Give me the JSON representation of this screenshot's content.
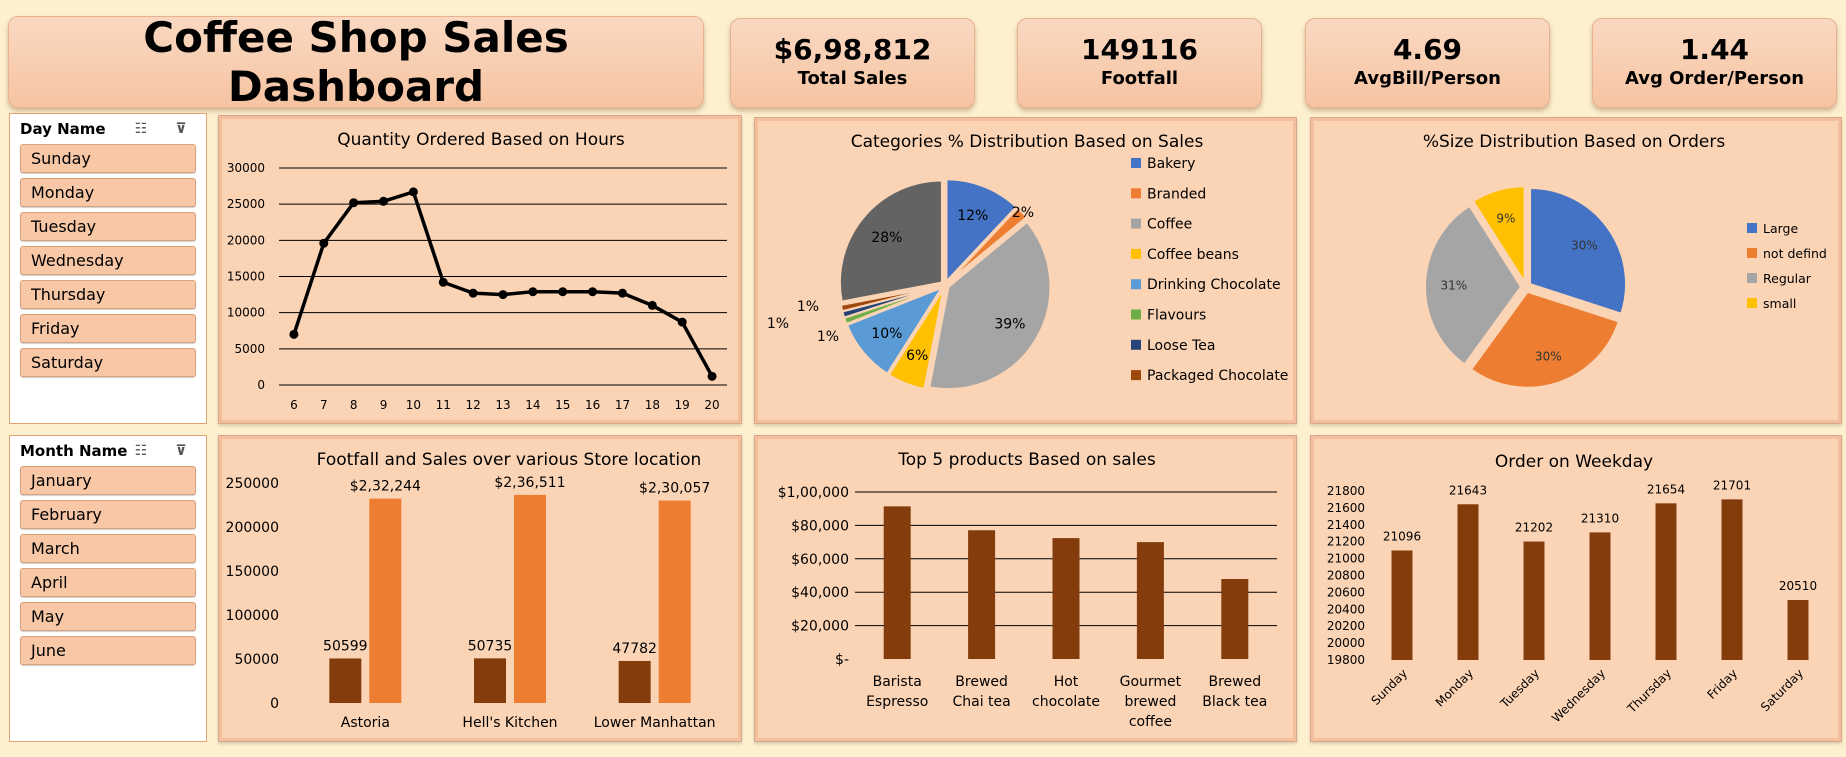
{
  "dashboard": {
    "title": "Coffee Shop Sales Dashboard"
  },
  "kpis": [
    {
      "value": "$6,98,812",
      "label": "Total Sales"
    },
    {
      "value": "149116",
      "label": "Footfall"
    },
    {
      "value": "4.69",
      "label": "AvgBill/Person"
    },
    {
      "value": "1.44",
      "label": "Avg Order/Person"
    }
  ],
  "slicers": {
    "day": {
      "title": "Day Name",
      "items": [
        "Sunday",
        "Monday",
        "Tuesday",
        "Wednesday",
        "Thursday",
        "Friday",
        "Saturday"
      ]
    },
    "month": {
      "title": "Month Name",
      "items": [
        "January",
        "February",
        "March",
        "April",
        "May",
        "June"
      ]
    }
  },
  "colors": {
    "line": "#000000",
    "bar_dark": "#843c0c",
    "bar_orange": "#ed7d31",
    "panel": "#fbd4b6"
  },
  "chart_data": [
    {
      "id": "hours",
      "type": "line",
      "title": "Quantity Ordered Based on Hours",
      "x": [
        6,
        7,
        8,
        9,
        10,
        11,
        12,
        13,
        14,
        15,
        16,
        17,
        18,
        19,
        20
      ],
      "values": [
        7000,
        19600,
        25200,
        25400,
        26700,
        14200,
        12700,
        12500,
        12900,
        12900,
        12900,
        12700,
        11000,
        8700,
        1200
      ],
      "yticks": [
        0,
        5000,
        10000,
        15000,
        20000,
        25000,
        30000
      ],
      "ylim": [
        0,
        30000
      ],
      "grid": true
    },
    {
      "id": "categories",
      "type": "pie",
      "title": "Categories % Distribution Based on Sales",
      "slices": [
        {
          "name": "Bakery",
          "value": 12,
          "label": "12%",
          "color": "#4472c4"
        },
        {
          "name": "Branded",
          "value": 2,
          "label": "2%",
          "color": "#ed7d31"
        },
        {
          "name": "Coffee",
          "value": 39,
          "label": "39%",
          "color": "#a5a5a5"
        },
        {
          "name": "Coffee beans",
          "value": 6,
          "label": "6%",
          "color": "#ffc000"
        },
        {
          "name": "Drinking Chocolate",
          "value": 10,
          "label": "10%",
          "color": "#5b9bd5"
        },
        {
          "name": "Flavours",
          "value": 1,
          "label": "1%",
          "color": "#70ad47"
        },
        {
          "name": "Loose Tea",
          "value": 1,
          "label": "1%",
          "color": "#264478"
        },
        {
          "name": "Packaged Chocolate",
          "value": 1,
          "label": "1%",
          "color": "#9e480e"
        },
        {
          "name": "",
          "value": 28,
          "label": "28%",
          "color": "#636363"
        }
      ],
      "legend": "right"
    },
    {
      "id": "sizes",
      "type": "pie",
      "title": "%Size Distribution Based on Orders",
      "slices": [
        {
          "name": "Large",
          "value": 30,
          "label": "30%",
          "color": "#4472c4"
        },
        {
          "name": "not defind",
          "value": 30,
          "label": "30%",
          "color": "#ed7d31"
        },
        {
          "name": "Regular",
          "value": 31,
          "label": "31%",
          "color": "#a5a5a5"
        },
        {
          "name": "small",
          "value": 9,
          "label": "9%",
          "color": "#ffc000"
        }
      ],
      "legend": "right"
    },
    {
      "id": "stores",
      "type": "bar",
      "title": "Footfall and Sales over various Store location",
      "categories": [
        "Astoria",
        "Hell's Kitchen",
        "Lower Manhattan"
      ],
      "series": [
        {
          "values": [
            50599,
            50735,
            47782
          ],
          "labels": [
            "50599",
            "50735",
            "47782"
          ],
          "color": "#843c0c"
        },
        {
          "values": [
            232244,
            236511,
            230057
          ],
          "labels": [
            "$2,32,244",
            "$2,36,511",
            "$2,30,057"
          ],
          "color": "#ed7d31"
        }
      ],
      "yticks": [
        "0",
        "50000",
        "100000",
        "150000",
        "200000",
        "250000"
      ],
      "ylim": [
        0,
        250000
      ]
    },
    {
      "id": "products",
      "type": "bar",
      "title": "Top 5 products Based on  sales",
      "categories": [
        [
          "Barista",
          "Espresso"
        ],
        [
          "Brewed",
          "Chai tea"
        ],
        [
          "Hot",
          "chocolate"
        ],
        [
          "Gourmet",
          "brewed",
          "coffee"
        ],
        [
          "Brewed",
          "Black tea"
        ]
      ],
      "values": [
        91400,
        77100,
        72400,
        70000,
        47900
      ],
      "yticks": [
        "$-",
        "$20,000",
        "$40,000",
        "$60,000",
        "$80,000",
        "$1,00,000"
      ],
      "ylim": [
        0,
        100000
      ],
      "grid": true
    },
    {
      "id": "weekday",
      "type": "bar",
      "title": "Order on Weekday",
      "categories": [
        "Sunday",
        "Monday",
        "Tuesday",
        "Wednesday",
        "Thursday",
        "Friday",
        "Saturday"
      ],
      "values": [
        21096,
        21643,
        21202,
        21310,
        21654,
        21701,
        20510
      ],
      "labels": [
        "21096",
        "21643",
        "21202",
        "21310",
        "21654",
        "21701",
        "20510"
      ],
      "yticks": [
        "19800",
        "20000",
        "20200",
        "20400",
        "20600",
        "20800",
        "21000",
        "21200",
        "21400",
        "21600",
        "21800"
      ],
      "ylim": [
        19800,
        21800
      ]
    }
  ]
}
